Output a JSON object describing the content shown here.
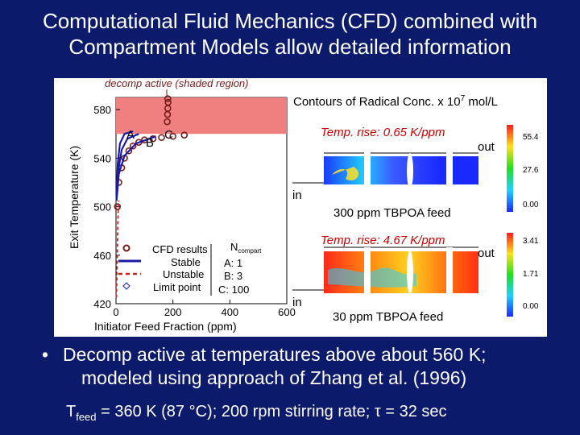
{
  "slide": {
    "title_line1": "Computational Fluid Mechanics (CFD) combined with",
    "title_line2": "Compartment Models allow detailed information"
  },
  "chart": {
    "annotation": "decomp active (shaded region)",
    "ylabel": "Exit Temperature (K)",
    "xlabel": "Initiator Feed Fraction (ppm)",
    "curve_labels": [
      "A",
      "B",
      "C"
    ],
    "legend": {
      "cfd": "CFD results",
      "stable": "Stable",
      "unstable": "Unstable",
      "limit": "Limit point",
      "n_compart": "N",
      "n_sub": "compart",
      "a": "A: 1",
      "b": "B: 3",
      "c": "C: 100"
    },
    "colors": {
      "shade": "#f08080",
      "cfd": "#7a1a1a",
      "stable": "#1a1aa8",
      "unstable": "#cc2222",
      "limit": "#1a1aa8"
    }
  },
  "chart_data": {
    "type": "line",
    "xlabel": "Initiator Feed Fraction (ppm)",
    "ylabel": "Exit Temperature (K)",
    "xlim": [
      0,
      600
    ],
    "ylim": [
      420,
      590
    ],
    "xticks": [
      0,
      200,
      400,
      600
    ],
    "yticks": [
      420,
      460,
      500,
      540,
      580
    ],
    "shaded_region": {
      "y_from": 560,
      "y_to": 590
    },
    "series": [
      {
        "name": "CFD results",
        "style": "circles",
        "x": [
          5,
          10,
          20,
          30,
          45,
          60,
          80,
          100,
          130,
          160,
          200,
          240
        ],
        "y": [
          500,
          520,
          532,
          540,
          546,
          550,
          553,
          555,
          556,
          557,
          558,
          559
        ]
      },
      {
        "name": "A",
        "style": "stable",
        "x": [
          2,
          6,
          14,
          30,
          60
        ],
        "y": [
          505,
          535,
          552,
          560,
          562
        ]
      },
      {
        "name": "B",
        "style": "stable",
        "x": [
          2,
          8,
          20,
          40,
          80
        ],
        "y": [
          505,
          530,
          547,
          556,
          560
        ]
      },
      {
        "name": "C",
        "style": "stable",
        "x": [
          2,
          10,
          30,
          70,
          140
        ],
        "y": [
          505,
          527,
          542,
          552,
          558
        ]
      },
      {
        "name": "CFD upper",
        "style": "circles",
        "x": [
          180,
          181,
          182,
          183,
          182
        ],
        "y": [
          570,
          576,
          581,
          586,
          589
        ]
      },
      {
        "name": "Unstable",
        "style": "unstable",
        "x": [
          1,
          4,
          6,
          8,
          10
        ],
        "y": [
          425,
          450,
          480,
          500,
          505
        ]
      }
    ]
  },
  "contours": {
    "title": "Contours of Radical Conc. x 10",
    "title_exp": "7",
    "title_unit": " mol/L",
    "top": {
      "temp_rise": "Temp. rise:  0.65 K/ppm",
      "out": "out",
      "in": "in",
      "feed": "300 ppm TBPOA feed",
      "scale": [
        "55.4",
        "27.6",
        "0.00"
      ]
    },
    "bottom": {
      "temp_rise": "Temp. rise:  4.67 K/ppm",
      "out": "out",
      "in": "in",
      "feed": "30 ppm TBPOA feed",
      "scale": [
        "3.41",
        "1.71",
        "0.00"
      ]
    }
  },
  "bullet": {
    "dot": "•",
    "line1": "Decomp active at temperatures above about 560 K;",
    "line2": "modeled using approach of Zhang et al. (1996)"
  },
  "footer": {
    "t": "T",
    "t_sub": "feed",
    "text": " = 360 K (87 °C); 200 rpm stirring rate; τ = 32 sec"
  }
}
